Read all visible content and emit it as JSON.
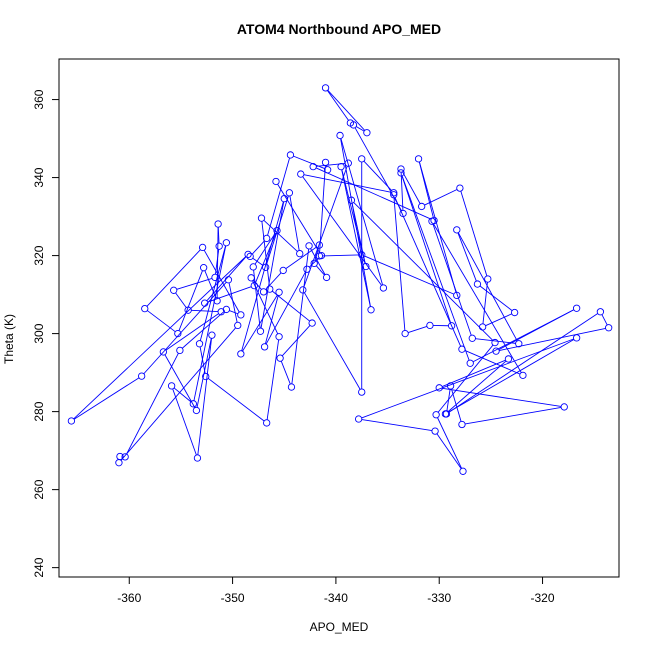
{
  "chart_data": {
    "type": "line",
    "title": "ATOM4 Northbound APO_MED",
    "xlabel": "APO_MED",
    "ylabel": "Theta (K)",
    "xlim": [
      -366.8,
      -312.6
    ],
    "ylim": [
      237.6,
      370.4
    ],
    "xticks": [
      -360,
      -350,
      -340,
      -330,
      -320
    ],
    "yticks": [
      240,
      260,
      280,
      300,
      320,
      340,
      360
    ],
    "grid": false,
    "series": [
      {
        "color": "#0000ff",
        "marker": "open-circle",
        "points": [
          [
            -338.6,
            354.0
          ],
          [
            -341.0,
            363.0
          ],
          [
            -337.0,
            351.5
          ],
          [
            -338.3,
            353.5
          ],
          [
            -333.5,
            330.8
          ],
          [
            -333.7,
            342.2
          ],
          [
            -331.7,
            332.6
          ],
          [
            -328.0,
            337.3
          ],
          [
            -325.3,
            314.0
          ],
          [
            -325.8,
            301.7
          ],
          [
            -322.7,
            305.4
          ],
          [
            -326.3,
            312.7
          ],
          [
            -328.3,
            326.6
          ],
          [
            -322.3,
            297.4
          ],
          [
            -326.8,
            298.8
          ],
          [
            -330.7,
            328.8
          ],
          [
            -321.9,
            289.3
          ],
          [
            -327.8,
            296.0
          ],
          [
            -334.4,
            335.6
          ],
          [
            -333.3,
            300.0
          ],
          [
            -330.9,
            302.1
          ],
          [
            -328.8,
            302.0
          ],
          [
            -333.7,
            341.2
          ],
          [
            -327.0,
            292.4
          ],
          [
            -316.7,
            306.5
          ],
          [
            -324.5,
            295.5
          ],
          [
            -313.6,
            301.5
          ],
          [
            -314.4,
            305.6
          ],
          [
            -329.3,
            279.4
          ],
          [
            -328.9,
            286.6
          ],
          [
            -327.8,
            276.7
          ],
          [
            -317.9,
            281.2
          ],
          [
            -330.0,
            286.1
          ],
          [
            -323.3,
            293.5
          ],
          [
            -329.4,
            279.4
          ],
          [
            -316.7,
            298.9
          ],
          [
            -337.8,
            278.1
          ],
          [
            -330.4,
            275.0
          ],
          [
            -327.7,
            264.7
          ],
          [
            -330.3,
            279.2
          ],
          [
            -324.6,
            297.7
          ],
          [
            -338.5,
            334.2
          ],
          [
            -337.1,
            317.2
          ],
          [
            -339.5,
            342.8
          ],
          [
            -336.6,
            306.1
          ],
          [
            -339.6,
            350.8
          ],
          [
            -335.4,
            311.7
          ],
          [
            -343.4,
            340.9
          ],
          [
            -334.4,
            336.1
          ],
          [
            -337.5,
            344.8
          ],
          [
            -337.5,
            285.0
          ],
          [
            -343.2,
            311.2
          ],
          [
            -338.8,
            343.7
          ],
          [
            -342.2,
            342.8
          ],
          [
            -330.5,
            329.0
          ],
          [
            -332.0,
            344.8
          ],
          [
            -328.3,
            309.8
          ],
          [
            -337.5,
            320.2
          ],
          [
            -341.6,
            319.9
          ],
          [
            -341.0,
            343.9
          ],
          [
            -340.8,
            342.0
          ],
          [
            -344.4,
            345.8
          ],
          [
            -346.7,
            324.4
          ],
          [
            -348.3,
            319.8
          ],
          [
            -346.8,
            317.0
          ],
          [
            -344.5,
            336.1
          ],
          [
            -343.5,
            320.5
          ],
          [
            -347.2,
            329.6
          ],
          [
            -346.4,
            311.4
          ],
          [
            -342.3,
            302.7
          ],
          [
            -345.4,
            293.7
          ],
          [
            -344.3,
            286.3
          ],
          [
            -342.6,
            322.5
          ],
          [
            -340.9,
            314.4
          ],
          [
            -342.1,
            318.0
          ],
          [
            -341.6,
            322.7
          ],
          [
            -345.1,
            316.2
          ],
          [
            -347.0,
            310.7
          ],
          [
            -348.2,
            314.3
          ],
          [
            -345.5,
            299.2
          ],
          [
            -346.7,
            277.1
          ],
          [
            -352.6,
            289.0
          ],
          [
            -353.2,
            297.4
          ],
          [
            -350.6,
            323.3
          ],
          [
            -353.8,
            282.0
          ],
          [
            -355.9,
            286.6
          ],
          [
            -353.4,
            268.1
          ],
          [
            -352.0,
            299.6
          ],
          [
            -353.5,
            280.3
          ],
          [
            -356.7,
            295.3
          ],
          [
            -351.1,
            305.6
          ],
          [
            -354.3,
            306.0
          ],
          [
            -355.7,
            311.1
          ],
          [
            -351.7,
            314.4
          ],
          [
            -351.3,
            322.4
          ],
          [
            -351.4,
            328.1
          ],
          [
            -351.5,
            308.4
          ],
          [
            -352.8,
            316.9
          ],
          [
            -355.3,
            300.0
          ],
          [
            -358.5,
            306.4
          ],
          [
            -352.9,
            322.1
          ],
          [
            -349.2,
            304.8
          ],
          [
            -350.6,
            306.2
          ],
          [
            -355.1,
            295.7
          ],
          [
            -360.4,
            268.4
          ],
          [
            -360.9,
            268.5
          ],
          [
            -361.0,
            266.9
          ],
          [
            -349.5,
            302.1
          ],
          [
            -350.4,
            313.8
          ],
          [
            -358.8,
            289.1
          ],
          [
            -365.6,
            277.6
          ],
          [
            -348.5,
            320.3
          ],
          [
            -352.7,
            307.8
          ],
          [
            -347.9,
            312.3
          ],
          [
            -345.7,
            326.4
          ],
          [
            -348.0,
            317.1
          ],
          [
            -347.3,
            300.6
          ],
          [
            -345.0,
            334.6
          ],
          [
            -349.2,
            294.8
          ],
          [
            -345.5,
            310.6
          ],
          [
            -346.9,
            296.6
          ],
          [
            -342.8,
            316.5
          ],
          [
            -341.4,
            320.0
          ],
          [
            -345.8,
            339.0
          ]
        ]
      }
    ]
  }
}
